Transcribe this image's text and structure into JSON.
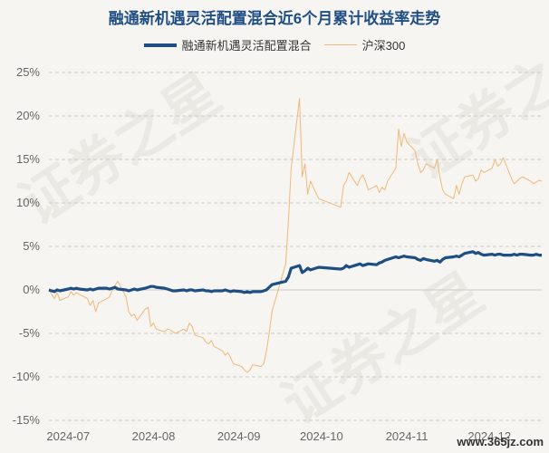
{
  "chart_data": {
    "type": "line",
    "title": "融通新机遇灵活配置混合近6个月累计收益率走势",
    "xlabel": "",
    "ylabel": "",
    "ylim": [
      -15,
      25
    ],
    "yticks": [
      "25%",
      "20%",
      "15%",
      "10%",
      "5%",
      "0%",
      "-5%",
      "-10%",
      "-15%"
    ],
    "xticks": [
      "2024-07",
      "2024-08",
      "2024-09",
      "2024-10",
      "2024-11",
      "2024-12"
    ],
    "grid": true,
    "legend_position": "top",
    "x": [
      "2024-06-24",
      "2024-06-25",
      "2024-06-26",
      "2024-06-27",
      "2024-06-28",
      "2024-07-01",
      "2024-07-02",
      "2024-07-03",
      "2024-07-04",
      "2024-07-05",
      "2024-07-08",
      "2024-07-09",
      "2024-07-10",
      "2024-07-11",
      "2024-07-12",
      "2024-07-15",
      "2024-07-16",
      "2024-07-17",
      "2024-07-18",
      "2024-07-19",
      "2024-07-22",
      "2024-07-23",
      "2024-07-24",
      "2024-07-25",
      "2024-07-26",
      "2024-07-29",
      "2024-07-30",
      "2024-07-31",
      "2024-08-01",
      "2024-08-02",
      "2024-08-05",
      "2024-08-06",
      "2024-08-07",
      "2024-08-08",
      "2024-08-09",
      "2024-08-12",
      "2024-08-13",
      "2024-08-14",
      "2024-08-15",
      "2024-08-16",
      "2024-08-19",
      "2024-08-20",
      "2024-08-21",
      "2024-08-22",
      "2024-08-23",
      "2024-08-26",
      "2024-08-27",
      "2024-08-28",
      "2024-08-29",
      "2024-08-30",
      "2024-09-02",
      "2024-09-03",
      "2024-09-04",
      "2024-09-05",
      "2024-09-06",
      "2024-09-09",
      "2024-09-10",
      "2024-09-11",
      "2024-09-12",
      "2024-09-13",
      "2024-09-18",
      "2024-09-19",
      "2024-09-20",
      "2024-09-23",
      "2024-09-24",
      "2024-09-25",
      "2024-09-26",
      "2024-09-27",
      "2024-09-30",
      "2024-10-08",
      "2024-10-09",
      "2024-10-10",
      "2024-10-11",
      "2024-10-14",
      "2024-10-15",
      "2024-10-16",
      "2024-10-17",
      "2024-10-18",
      "2024-10-21",
      "2024-10-22",
      "2024-10-23",
      "2024-10-24",
      "2024-10-25",
      "2024-10-28",
      "2024-10-29",
      "2024-10-30",
      "2024-10-31",
      "2024-11-01",
      "2024-11-04",
      "2024-11-05",
      "2024-11-06",
      "2024-11-07",
      "2024-11-08",
      "2024-11-11",
      "2024-11-12",
      "2024-11-13",
      "2024-11-14",
      "2024-11-15",
      "2024-11-18",
      "2024-11-19",
      "2024-11-20",
      "2024-11-21",
      "2024-11-22",
      "2024-11-25",
      "2024-11-26",
      "2024-11-27",
      "2024-11-28",
      "2024-11-29",
      "2024-12-02",
      "2024-12-03",
      "2024-12-04",
      "2024-12-05",
      "2024-12-06",
      "2024-12-09",
      "2024-12-10",
      "2024-12-11",
      "2024-12-12",
      "2024-12-13",
      "2024-12-16",
      "2024-12-17",
      "2024-12-18",
      "2024-12-19",
      "2024-12-20"
    ],
    "series": [
      {
        "name": "融通新机遇灵活配置混合",
        "color": "#1f4e84",
        "values": [
          0.0,
          -0.1,
          -0.2,
          0.0,
          -0.1,
          0.1,
          0.2,
          0.1,
          0.2,
          0.1,
          0.0,
          0.1,
          0.0,
          0.1,
          0.2,
          0.2,
          0.1,
          0.2,
          0.3,
          0.1,
          0.0,
          -0.1,
          0.0,
          0.1,
          0.0,
          0.2,
          0.3,
          0.4,
          0.4,
          0.3,
          0.2,
          0.1,
          0.0,
          -0.1,
          -0.1,
          0.0,
          -0.1,
          0.0,
          0.0,
          -0.1,
          0.0,
          -0.1,
          -0.1,
          -0.2,
          -0.1,
          -0.1,
          0.0,
          -0.1,
          -0.2,
          -0.1,
          -0.2,
          -0.3,
          -0.2,
          -0.3,
          -0.2,
          -0.2,
          -0.1,
          0.0,
          0.3,
          0.6,
          1.0,
          1.5,
          2.5,
          2.8,
          2.0,
          2.2,
          2.5,
          2.3,
          2.6,
          2.4,
          2.5,
          2.8,
          2.6,
          2.9,
          3.0,
          2.8,
          2.9,
          3.0,
          2.9,
          3.1,
          3.2,
          3.4,
          3.5,
          3.8,
          3.7,
          3.8,
          3.9,
          3.8,
          3.7,
          3.5,
          3.4,
          3.6,
          3.5,
          3.3,
          3.4,
          3.2,
          3.5,
          3.7,
          3.8,
          3.9,
          3.8,
          4.0,
          4.2,
          4.4,
          4.2,
          4.3,
          4.1,
          4.0,
          4.1,
          4.0,
          4.1,
          4.1,
          4.0,
          4.0,
          4.1,
          4.0,
          4.1,
          4.1,
          4.0,
          4.0,
          4.1,
          4.0,
          4.0
        ]
      },
      {
        "name": "沪深300",
        "color": "#f0b878",
        "values": [
          0.0,
          -0.5,
          -1.0,
          -0.3,
          -1.2,
          -0.8,
          -0.2,
          -0.6,
          -0.3,
          -0.5,
          -1.0,
          -1.8,
          -1.2,
          -2.5,
          -1.5,
          -1.0,
          -0.8,
          0.0,
          0.5,
          1.0,
          -0.8,
          -2.5,
          -3.0,
          -2.8,
          -3.5,
          -2.2,
          -2.0,
          -4.2,
          -3.8,
          -4.5,
          -4.8,
          -4.5,
          -4.6,
          -4.8,
          -5.0,
          -4.5,
          -4.8,
          -3.8,
          -4.2,
          -5.2,
          -5.5,
          -6.0,
          -6.2,
          -5.8,
          -6.5,
          -7.0,
          -7.5,
          -7.2,
          -7.8,
          -8.5,
          -8.8,
          -9.2,
          -9.5,
          -9.2,
          -8.6,
          -8.8,
          -8.5,
          -7.0,
          -5.0,
          -2.5,
          3.0,
          8.0,
          14.0,
          22.0,
          13.0,
          14.5,
          11.0,
          12.5,
          10.5,
          9.5,
          12.0,
          12.5,
          13.5,
          12.0,
          12.8,
          13.2,
          12.5,
          11.5,
          12.0,
          11.2,
          11.8,
          11.5,
          12.5,
          14.0,
          18.5,
          16.5,
          18.0,
          17.0,
          16.0,
          14.5,
          13.5,
          13.8,
          14.5,
          14.0,
          15.0,
          13.0,
          11.5,
          11.0,
          10.5,
          12.0,
          11.0,
          12.2,
          13.0,
          13.2,
          12.5,
          12.8,
          13.8,
          13.5,
          14.0,
          15.0,
          14.2,
          14.5,
          15.2,
          12.8,
          12.2,
          12.5,
          12.8,
          13.0,
          12.5,
          12.2,
          12.4,
          12.6,
          12.5
        ]
      }
    ]
  },
  "watermark": {
    "main": "证券之星",
    "url": "www.365jz.com"
  }
}
